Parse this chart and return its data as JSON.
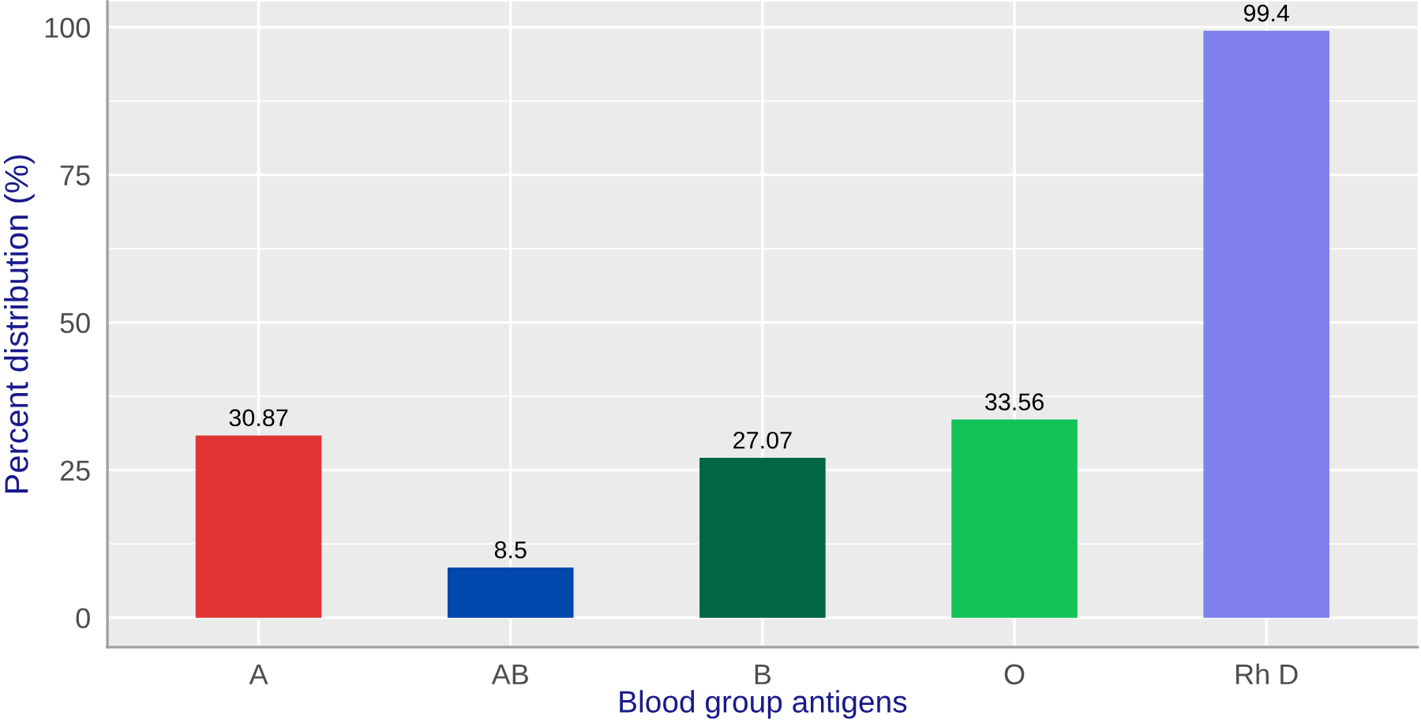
{
  "chart_data": {
    "type": "bar",
    "xlabel": "Blood group antigens",
    "ylabel": "Percent distribution (%)",
    "categories": [
      "A",
      "AB",
      "B",
      "O",
      "Rh D"
    ],
    "values": [
      30.87,
      8.5,
      27.07,
      33.56,
      99.4
    ],
    "colors": [
      "#e03532",
      "#0047ab",
      "#006644",
      "#13c35a",
      "#8080f0"
    ],
    "ylim": [
      -4.97,
      104.37
    ],
    "yticks": [
      0,
      25,
      50,
      75,
      100
    ],
    "grid": true,
    "data_labels": true
  }
}
